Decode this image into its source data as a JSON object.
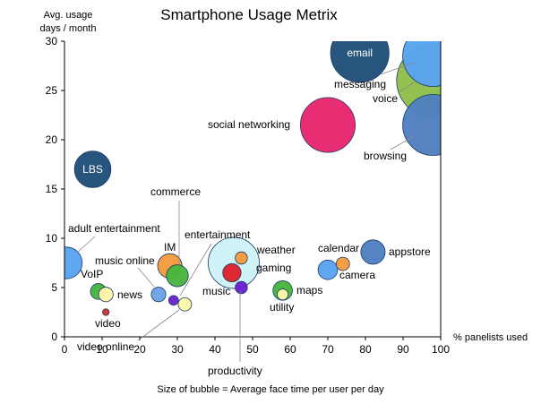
{
  "chart_data": {
    "type": "scatter",
    "title": "Smartphone Usage Metrix",
    "xlabel": "% panelists used",
    "ylabel_line1": "Avg. usage",
    "ylabel_line2": "days / month",
    "caption": "Size of bubble = Average face time per user per day",
    "xlim": [
      0,
      100
    ],
    "ylim": [
      0,
      30
    ],
    "x_ticks": [
      0,
      10,
      20,
      30,
      40,
      50,
      60,
      70,
      80,
      90,
      100
    ],
    "y_ticks": [
      0,
      5,
      10,
      15,
      20,
      25,
      30
    ],
    "grid": false,
    "legend": "none",
    "points": [
      {
        "name": "email",
        "x": 78.5,
        "y": 28.8,
        "size": 4.8,
        "color": "#1f4e79",
        "label_inside": true
      },
      {
        "name": "messaging",
        "x": 98,
        "y": 28.5,
        "size": 5.0,
        "color": "#5aa3f0"
      },
      {
        "name": "voice",
        "x": 98,
        "y": 26.0,
        "size": 6.0,
        "color": "#8ebd4a"
      },
      {
        "name": "browsing",
        "x": 98,
        "y": 21.5,
        "size": 5.0,
        "color": "#4f7fbf"
      },
      {
        "name": "social networking",
        "x": 70,
        "y": 21.5,
        "size": 4.5,
        "color": "#e7246c"
      },
      {
        "name": "LBS",
        "x": 7.5,
        "y": 17.0,
        "size": 3.0,
        "color": "#1f4e79",
        "label_inside": true
      },
      {
        "name": "adult entertainment",
        "x": 0.5,
        "y": 7.5,
        "size": 2.6,
        "color": "#5aa3f0"
      },
      {
        "name": "IM",
        "x": 28,
        "y": 7.2,
        "size": 2.0,
        "color": "#f59a3c"
      },
      {
        "name": "commerce",
        "x": 30,
        "y": 6.2,
        "size": 1.8,
        "color": "#46b53e"
      },
      {
        "name": "music online",
        "x": 25,
        "y": 4.3,
        "size": 1.2,
        "color": "#6aa3e3"
      },
      {
        "name": "VoIP",
        "x": 9,
        "y": 4.6,
        "size": 1.3,
        "color": "#46b53e"
      },
      {
        "name": "news",
        "x": 11,
        "y": 4.3,
        "size": 1.2,
        "color": "#fff7a8"
      },
      {
        "name": "video",
        "x": 11,
        "y": 2.5,
        "size": 0.55,
        "color": "#d32f2f"
      },
      {
        "name": "video online",
        "x": 32,
        "y": 3.3,
        "size": 1.1,
        "color": "#fff7a8"
      },
      {
        "name": "entertainment",
        "x": 29,
        "y": 3.7,
        "size": 0.8,
        "color": "#6a1fd1"
      },
      {
        "name": "gaming",
        "x": 45,
        "y": 7.5,
        "size": 4.2,
        "color": "#cdf2f7"
      },
      {
        "name": "weather",
        "x": 47,
        "y": 8.0,
        "size": 1.0,
        "color": "#f59a3c"
      },
      {
        "name": "music",
        "x": 44.5,
        "y": 6.5,
        "size": 1.5,
        "color": "#e0202a"
      },
      {
        "name": "productivity",
        "x": 47,
        "y": 5.0,
        "size": 1.0,
        "color": "#6a1fd1"
      },
      {
        "name": "maps",
        "x": 58,
        "y": 4.7,
        "size": 1.6,
        "color": "#46b53e"
      },
      {
        "name": "utility",
        "x": 58,
        "y": 4.3,
        "size": 0.9,
        "color": "#fff7a8"
      },
      {
        "name": "calendar",
        "x": 74,
        "y": 7.4,
        "size": 1.1,
        "color": "#f59a3c"
      },
      {
        "name": "camera",
        "x": 70,
        "y": 6.8,
        "size": 1.6,
        "color": "#5aa3f0"
      },
      {
        "name": "appstore",
        "x": 82,
        "y": 8.6,
        "size": 2.0,
        "color": "#4f7fbf"
      }
    ]
  }
}
